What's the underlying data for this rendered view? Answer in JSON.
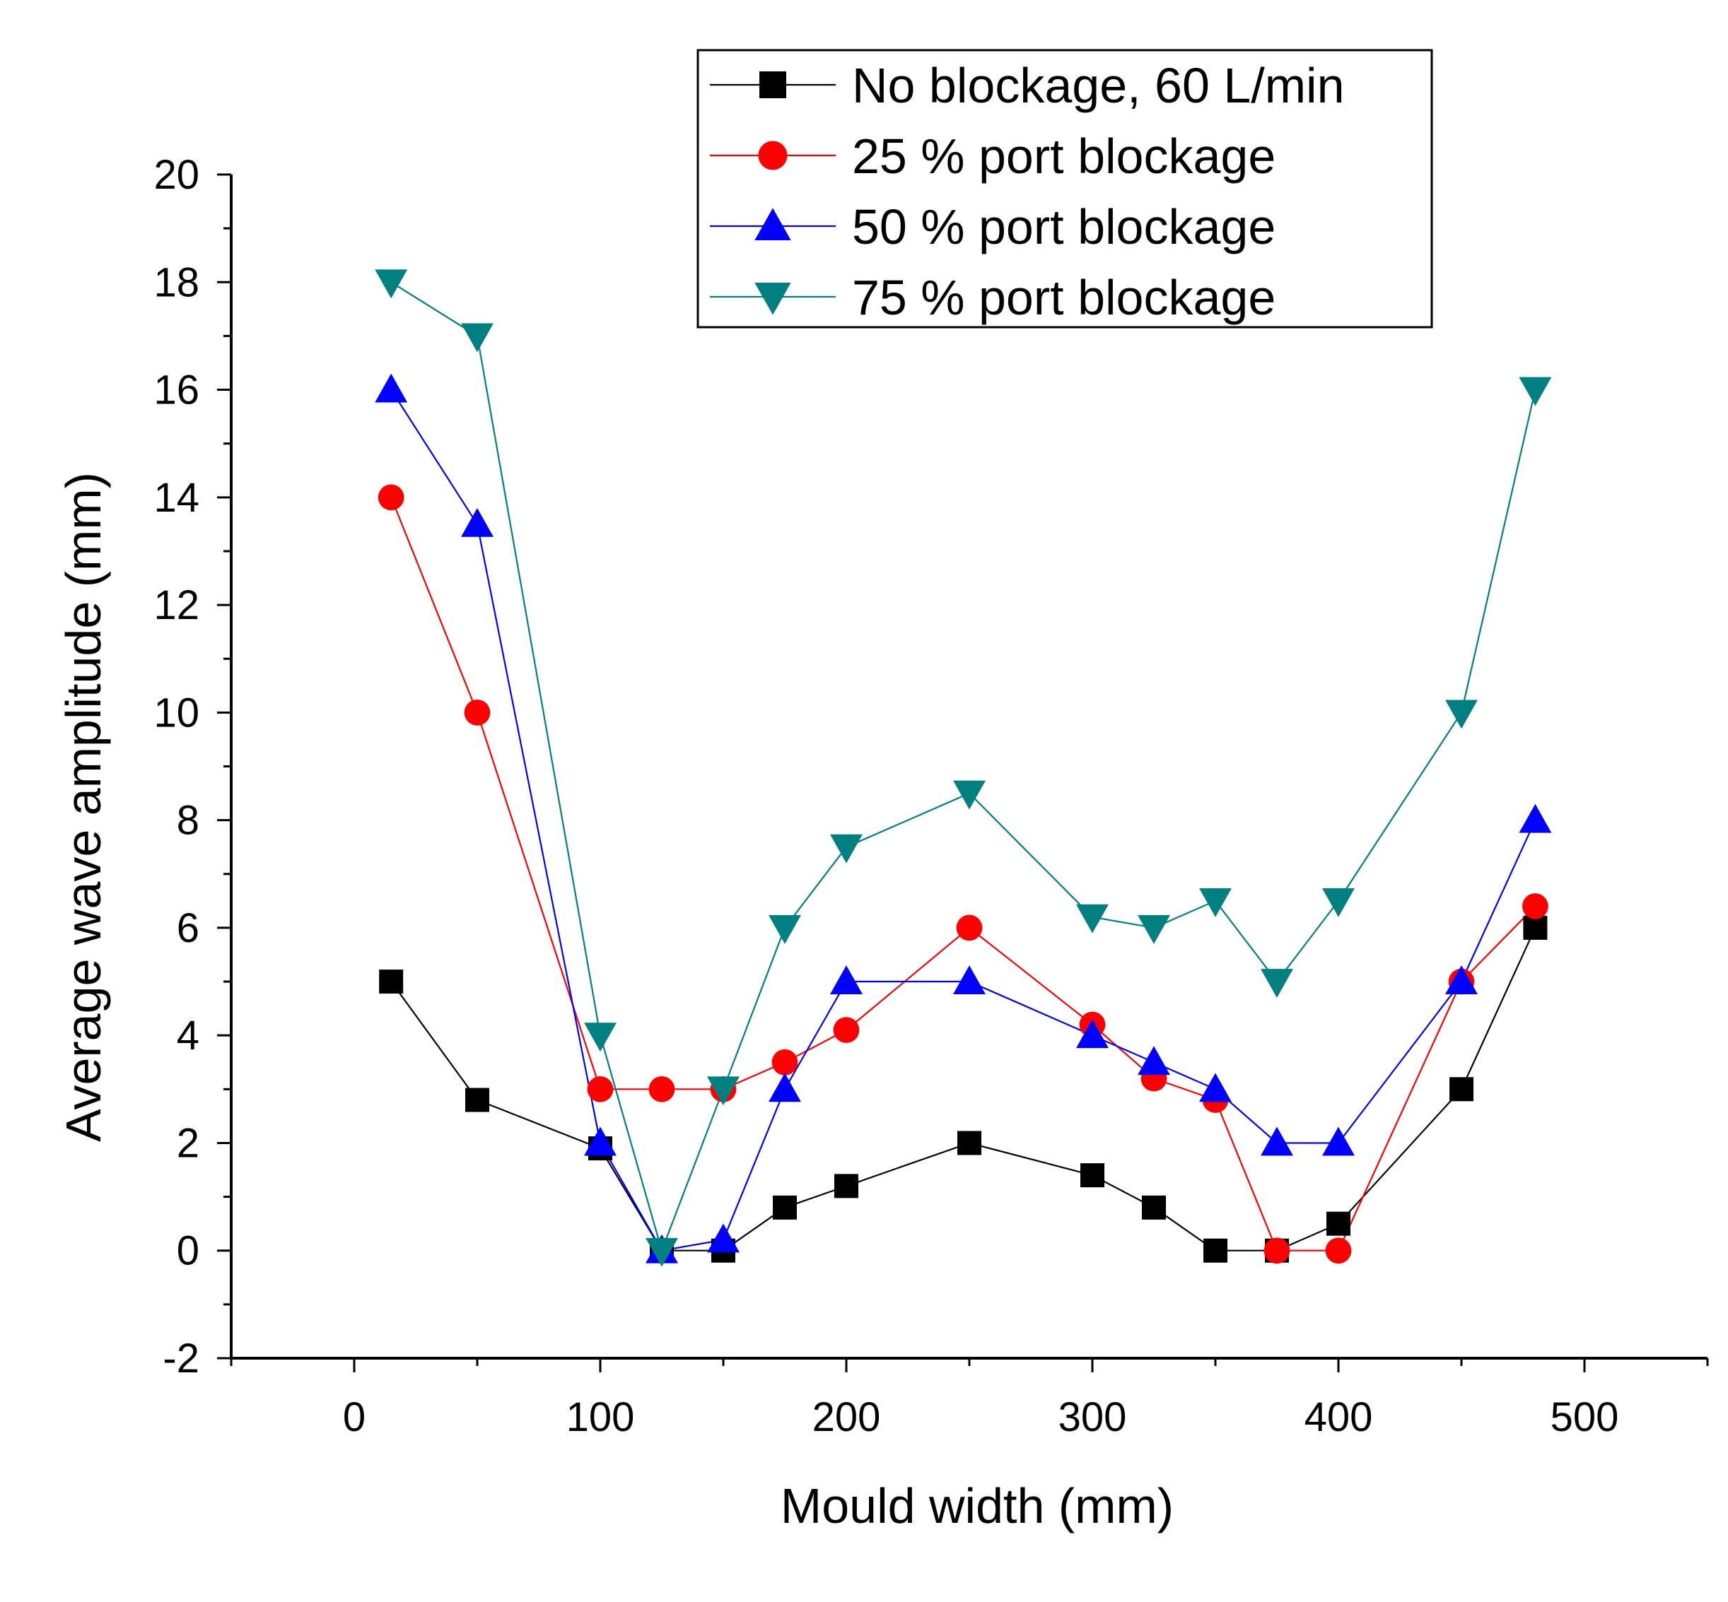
{
  "chart_data": {
    "type": "line",
    "title": "",
    "xlabel": "Mould width (mm)",
    "ylabel": "Average wave amplitude (mm)",
    "xlim": [
      -50,
      550
    ],
    "ylim": [
      -2,
      20
    ],
    "x_ticks": [
      0,
      100,
      200,
      300,
      400,
      500
    ],
    "y_ticks": [
      -2,
      0,
      2,
      4,
      6,
      8,
      10,
      12,
      14,
      16,
      18,
      20
    ],
    "grid": false,
    "legend_position": "top-right",
    "series": [
      {
        "name": "No blockage, 60 L/min",
        "color": "#000000",
        "marker": "square",
        "x": [
          15,
          50,
          100,
          125,
          150,
          175,
          200,
          250,
          300,
          325,
          350,
          375,
          400,
          450,
          480
        ],
        "y": [
          5,
          2.8,
          1.9,
          0,
          0,
          0.8,
          1.2,
          2,
          1.4,
          0.8,
          0,
          0,
          0.5,
          3,
          6
        ]
      },
      {
        "name": "25 % port blockage",
        "color": "#ff0000",
        "marker": "circle",
        "x": [
          15,
          50,
          100,
          125,
          150,
          175,
          200,
          250,
          300,
          325,
          350,
          375,
          400,
          450,
          480
        ],
        "y": [
          14,
          10,
          3,
          3,
          3,
          3.5,
          4.1,
          6,
          4.2,
          3.2,
          2.8,
          0,
          0,
          5,
          6.4
        ]
      },
      {
        "name": "50 % port blockage",
        "color": "#0000ff",
        "marker": "triangle-up",
        "x": [
          15,
          50,
          100,
          125,
          150,
          175,
          200,
          250,
          300,
          325,
          350,
          375,
          400,
          450,
          480
        ],
        "y": [
          16,
          13.5,
          2,
          0,
          0.2,
          3,
          5,
          5,
          4,
          3.5,
          3,
          2,
          2,
          5,
          8
        ]
      },
      {
        "name": "75 % port blockage",
        "color": "#008080",
        "marker": "triangle-down",
        "x": [
          15,
          50,
          100,
          125,
          150,
          175,
          200,
          250,
          300,
          325,
          350,
          375,
          400,
          450,
          480
        ],
        "y": [
          18,
          17,
          4,
          0,
          3,
          6,
          7.5,
          8.5,
          6.2,
          6,
          6.5,
          5,
          6.5,
          10,
          16
        ]
      }
    ]
  }
}
